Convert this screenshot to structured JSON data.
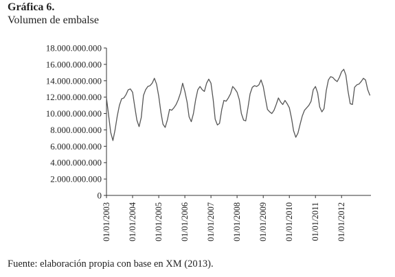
{
  "figure": {
    "number": "Gráfica 6.",
    "title": "Volumen de embalse",
    "source": "Fuente: elaboración propia con base en XM (2013)."
  },
  "chart_data": {
    "type": "line",
    "title": "Volumen de embalse",
    "xlabel": "",
    "ylabel": "",
    "ylim": [
      0,
      18000000000
    ],
    "xlim": [
      "2003-01-01",
      "2013-02-15"
    ],
    "y_ticks": [
      {
        "value": 0,
        "label": "0"
      },
      {
        "value": 2000000000,
        "label": "2.000.000.000"
      },
      {
        "value": 4000000000,
        "label": "4.000.000.000"
      },
      {
        "value": 6000000000,
        "label": "6.000.000.000"
      },
      {
        "value": 8000000000,
        "label": "8.000.000.000"
      },
      {
        "value": 10000000000,
        "label": "10.000.000.000"
      },
      {
        "value": 12000000000,
        "label": "12.000.000.000"
      },
      {
        "value": 14000000000,
        "label": "14.000.000.000"
      },
      {
        "value": 16000000000,
        "label": "16.000.000.000"
      },
      {
        "value": 18000000000,
        "label": "18.000.000.000"
      }
    ],
    "x_ticks": [
      {
        "value": "2003-01-01",
        "label": "01/01/2003"
      },
      {
        "value": "2004-01-01",
        "label": "01/01/2004"
      },
      {
        "value": "2005-01-01",
        "label": "01/01/2005"
      },
      {
        "value": "2006-01-01",
        "label": "01/01/2006"
      },
      {
        "value": "2007-01-01",
        "label": "01/01/2007"
      },
      {
        "value": "2008-01-01",
        "label": "01/01/2008"
      },
      {
        "value": "2009-01-01",
        "label": "01/01/2009"
      },
      {
        "value": "2010-01-01",
        "label": "01/01/2010"
      },
      {
        "value": "2011-01-01",
        "label": "01/01/2011"
      },
      {
        "value": "2012-01-01",
        "label": "01/01/2012"
      }
    ],
    "grid": false,
    "legend": "none",
    "line_color": "#555555",
    "series": [
      {
        "x": [
          "2003-01-01",
          "2003-02-01",
          "2003-03-01",
          "2003-04-01",
          "2003-05-01",
          "2003-06-01",
          "2003-07-01",
          "2003-08-01",
          "2003-09-01",
          "2003-10-01",
          "2003-11-01",
          "2003-12-01",
          "2004-01-01",
          "2004-02-01",
          "2004-03-01",
          "2004-04-01",
          "2004-05-01",
          "2004-06-01",
          "2004-07-01",
          "2004-08-01",
          "2004-09-01",
          "2004-10-01",
          "2004-11-01",
          "2004-12-01",
          "2005-01-01",
          "2005-02-01",
          "2005-03-01",
          "2005-04-01",
          "2005-05-01",
          "2005-06-01",
          "2005-07-01",
          "2005-08-01",
          "2005-09-01",
          "2005-10-01",
          "2005-11-01",
          "2005-12-01",
          "2006-01-01",
          "2006-02-01",
          "2006-03-01",
          "2006-04-01",
          "2006-05-01",
          "2006-06-01",
          "2006-07-01",
          "2006-08-01",
          "2006-09-01",
          "2006-10-01",
          "2006-11-01",
          "2006-12-01",
          "2007-01-01",
          "2007-02-01",
          "2007-03-01",
          "2007-04-01",
          "2007-05-01",
          "2007-06-01",
          "2007-07-01",
          "2007-08-01",
          "2007-09-01",
          "2007-10-01",
          "2007-11-01",
          "2007-12-01",
          "2008-01-01",
          "2008-02-01",
          "2008-03-01",
          "2008-04-01",
          "2008-05-01",
          "2008-06-01",
          "2008-07-01",
          "2008-08-01",
          "2008-09-01",
          "2008-10-01",
          "2008-11-01",
          "2008-12-01",
          "2009-01-01",
          "2009-02-01",
          "2009-03-01",
          "2009-04-01",
          "2009-05-01",
          "2009-06-01",
          "2009-07-01",
          "2009-08-01",
          "2009-09-01",
          "2009-10-01",
          "2009-11-01",
          "2009-12-01",
          "2010-01-01",
          "2010-02-01",
          "2010-03-01",
          "2010-04-01",
          "2010-05-01",
          "2010-06-01",
          "2010-07-01",
          "2010-08-01",
          "2010-09-01",
          "2010-10-01",
          "2010-11-01",
          "2010-12-01",
          "2011-01-01",
          "2011-02-01",
          "2011-03-01",
          "2011-04-01",
          "2011-05-01",
          "2011-06-01",
          "2011-07-01",
          "2011-08-01",
          "2011-09-01",
          "2011-10-01",
          "2011-11-01",
          "2011-12-01",
          "2012-01-01",
          "2012-02-01",
          "2012-03-01",
          "2012-04-01",
          "2012-05-01",
          "2012-06-01",
          "2012-07-01",
          "2012-08-01",
          "2012-09-01",
          "2012-10-01",
          "2012-11-01",
          "2012-12-01",
          "2013-01-01",
          "2013-02-01"
        ],
        "values": [
          11900000000,
          9700000000,
          7700000000,
          6700000000,
          8000000000,
          9700000000,
          11000000000,
          11800000000,
          11900000000,
          12300000000,
          12900000000,
          13000000000,
          12600000000,
          10800000000,
          9200000000,
          8400000000,
          9500000000,
          12200000000,
          12900000000,
          13300000000,
          13400000000,
          13700000000,
          14300000000,
          13600000000,
          12100000000,
          10100000000,
          8700000000,
          8300000000,
          9200000000,
          10500000000,
          10400000000,
          10700000000,
          11100000000,
          11700000000,
          12500000000,
          13700000000,
          12700000000,
          11400000000,
          9600000000,
          9000000000,
          10000000000,
          11700000000,
          12900000000,
          13300000000,
          12900000000,
          12700000000,
          13700000000,
          14200000000,
          13700000000,
          11700000000,
          9300000000,
          8600000000,
          8800000000,
          10500000000,
          11600000000,
          11500000000,
          11900000000,
          12400000000,
          13300000000,
          13000000000,
          12600000000,
          11700000000,
          10000000000,
          9200000000,
          9100000000,
          10700000000,
          12400000000,
          13200000000,
          13400000000,
          13300000000,
          13500000000,
          14100000000,
          13300000000,
          11800000000,
          10500000000,
          10200000000,
          10000000000,
          10400000000,
          11100000000,
          11900000000,
          11400000000,
          11100000000,
          11600000000,
          11200000000,
          10700000000,
          9400000000,
          7900000000,
          7100000000,
          7600000000,
          8700000000,
          9700000000,
          10400000000,
          10700000000,
          11000000000,
          11500000000,
          12900000000,
          13300000000,
          12500000000,
          10800000000,
          10200000000,
          10600000000,
          12800000000,
          14100000000,
          14500000000,
          14400000000,
          14100000000,
          13900000000,
          14400000000,
          15100000000,
          15400000000,
          14700000000,
          12700000000,
          11200000000,
          11100000000,
          13200000000,
          13500000000,
          13600000000,
          13900000000,
          14300000000,
          14100000000,
          12900000000,
          12200000000
        ]
      }
    ]
  }
}
